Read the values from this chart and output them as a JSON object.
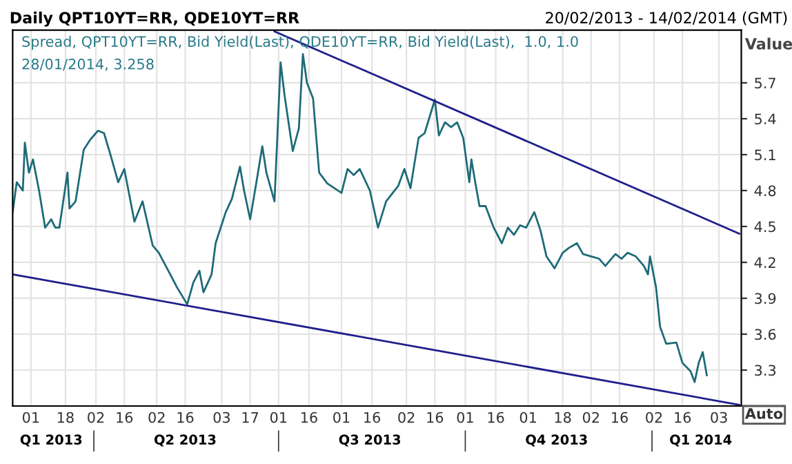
{
  "chart_data": {
    "type": "line",
    "title": "Daily QPT10YT=RR, QDE10YT=RR",
    "subtitle": "20/02/2013 - 14/02/2014 (GMT)",
    "ylabel": "Value",
    "annotations": [
      "Spread, QPT10YT=RR, Bid Yield(Last), QDE10YT=RR, Bid Yield(Last),  1.0, 1.0",
      "28/01/2014, 3.258",
      "Auto"
    ],
    "series": [
      {
        "color": "#1e6b78",
        "x": [
          "2013-02-20",
          "2013-02-22",
          "2013-02-25",
          "2013-02-26",
          "2013-02-28",
          "2013-03-02",
          "2013-03-05",
          "2013-03-08",
          "2013-03-11",
          "2013-03-13",
          "2013-03-15",
          "2013-03-19",
          "2013-03-20",
          "2013-03-23",
          "2013-03-27",
          "2013-03-30",
          "2013-04-01",
          "2013-04-03",
          "2013-04-06",
          "2013-04-09",
          "2013-04-13",
          "2013-04-16",
          "2013-04-21",
          "2013-04-25",
          "2013-04-30",
          "2013-05-03",
          "2013-05-08",
          "2013-05-12",
          "2013-05-17",
          "2013-05-20",
          "2013-05-23",
          "2013-05-25",
          "2013-05-29",
          "2013-05-31",
          "2013-06-05",
          "2013-06-08",
          "2013-06-12",
          "2013-06-14",
          "2013-06-17",
          "2013-06-20",
          "2013-06-23",
          "2013-06-25",
          "2013-06-29",
          "2013-07-02",
          "2013-07-04",
          "2013-07-08",
          "2013-07-11",
          "2013-07-13",
          "2013-07-15",
          "2013-07-18",
          "2013-07-21",
          "2013-07-25",
          "2013-08-01",
          "2013-08-04",
          "2013-08-07",
          "2013-08-10",
          "2013-08-15",
          "2013-08-19",
          "2013-08-23",
          "2013-08-29",
          "2013-09-01",
          "2013-09-04",
          "2013-09-08",
          "2013-09-11",
          "2013-09-16",
          "2013-09-18",
          "2013-09-21",
          "2013-09-24",
          "2013-09-27",
          "2013-09-30",
          "2013-10-03",
          "2013-10-04",
          "2013-10-06",
          "2013-10-08",
          "2013-10-11",
          "2013-10-15",
          "2013-10-19",
          "2013-10-22",
          "2013-10-25",
          "2013-10-28",
          "2013-10-31",
          "2013-11-04",
          "2013-11-07",
          "2013-11-10",
          "2013-11-14",
          "2013-11-18",
          "2013-11-21",
          "2013-11-25",
          "2013-11-28",
          "2013-12-02",
          "2013-12-06",
          "2013-12-09",
          "2013-12-14",
          "2013-12-17",
          "2013-12-20",
          "2013-12-24",
          "2013-12-28",
          "2013-12-30",
          "2013-12-31",
          "2014-01-03",
          "2014-01-05",
          "2014-01-08",
          "2014-01-13",
          "2014-01-16",
          "2014-01-20",
          "2014-01-22",
          "2014-01-24",
          "2014-01-26",
          "2014-01-28"
        ],
        "values": [
          4.62,
          4.87,
          4.8,
          5.2,
          4.95,
          5.06,
          4.8,
          4.49,
          4.56,
          4.49,
          4.49,
          4.95,
          4.65,
          4.71,
          5.14,
          5.22,
          5.26,
          5.3,
          5.28,
          5.11,
          4.87,
          4.98,
          4.54,
          4.71,
          4.34,
          4.28,
          4.12,
          3.99,
          3.85,
          4.03,
          4.13,
          3.95,
          4.1,
          4.36,
          4.62,
          4.73,
          5.0,
          4.8,
          4.56,
          4.86,
          5.17,
          4.95,
          4.71,
          5.87,
          5.59,
          5.13,
          5.32,
          5.94,
          5.7,
          5.57,
          4.95,
          4.86,
          4.78,
          4.98,
          4.93,
          4.98,
          4.8,
          4.49,
          4.71,
          4.84,
          4.98,
          4.82,
          5.24,
          5.28,
          5.56,
          5.26,
          5.37,
          5.33,
          5.37,
          5.24,
          4.87,
          5.06,
          4.86,
          4.67,
          4.67,
          4.49,
          4.36,
          4.49,
          4.43,
          4.51,
          4.49,
          4.62,
          4.47,
          4.25,
          4.15,
          4.28,
          4.32,
          4.36,
          4.27,
          4.25,
          4.23,
          4.17,
          4.27,
          4.23,
          4.28,
          4.25,
          4.17,
          4.1,
          4.25,
          3.99,
          3.66,
          3.52,
          3.53,
          3.36,
          3.29,
          3.2,
          3.36,
          3.45,
          3.258
        ]
      },
      {
        "color": "#1f1f8c",
        "x": [
          "2013-06-29",
          "2014-02-13"
        ],
        "values": [
          6.13,
          4.44
        ]
      },
      {
        "color": "#1f1f8c",
        "x": [
          "2013-02-20",
          "2014-02-13"
        ],
        "values": [
          4.1,
          3.01
        ]
      }
    ],
    "xlim": [
      "2013-02-20",
      "2014-02-14"
    ],
    "ylim": [
      3.0,
      6.14
    ],
    "yticks": [
      3.3,
      3.6,
      3.9,
      4.2,
      4.5,
      4.8,
      5.1,
      5.4,
      5.7
    ],
    "xticks": [
      {
        "value": "2013-03-01",
        "label": "01"
      },
      {
        "value": "2013-03-18",
        "label": "18"
      },
      {
        "value": "2013-04-02",
        "label": "02"
      },
      {
        "value": "2013-04-16",
        "label": "16"
      },
      {
        "value": "2013-05-02",
        "label": "02"
      },
      {
        "value": "2013-05-16",
        "label": "16"
      },
      {
        "value": "2013-06-03",
        "label": "03"
      },
      {
        "value": "2013-06-17",
        "label": "17"
      },
      {
        "value": "2013-07-01",
        "label": "01"
      },
      {
        "value": "2013-07-16",
        "label": "16"
      },
      {
        "value": "2013-08-01",
        "label": "01"
      },
      {
        "value": "2013-08-16",
        "label": "16"
      },
      {
        "value": "2013-09-02",
        "label": "02"
      },
      {
        "value": "2013-09-16",
        "label": "16"
      },
      {
        "value": "2013-10-01",
        "label": "01"
      },
      {
        "value": "2013-10-16",
        "label": "16"
      },
      {
        "value": "2013-11-01",
        "label": "01"
      },
      {
        "value": "2013-11-18",
        "label": "18"
      },
      {
        "value": "2013-12-02",
        "label": "02"
      },
      {
        "value": "2013-12-16",
        "label": "16"
      },
      {
        "value": "2014-01-02",
        "label": "02"
      },
      {
        "value": "2014-01-16",
        "label": "16"
      },
      {
        "value": "2014-02-03",
        "label": "03"
      }
    ],
    "x2lim": [
      "2013-02-20",
      "2014-02-14"
    ],
    "x2ticks": [
      {
        "value": "2013-03-11",
        "label": "Q1 2013"
      },
      {
        "value": "2013-04-01",
        "label": null
      },
      {
        "value": "2013-05-16",
        "label": "Q2 2013"
      },
      {
        "value": "2013-07-01",
        "label": null
      },
      {
        "value": "2013-08-15",
        "label": "Q3 2013"
      },
      {
        "value": "2013-10-01",
        "label": null
      },
      {
        "value": "2013-11-15",
        "label": "Q4 2013"
      },
      {
        "value": "2014-01-01",
        "label": null
      },
      {
        "value": "2014-01-25",
        "label": "Q1 2014"
      }
    ],
    "grid": true,
    "marker": "none",
    "line_style": "solid"
  }
}
